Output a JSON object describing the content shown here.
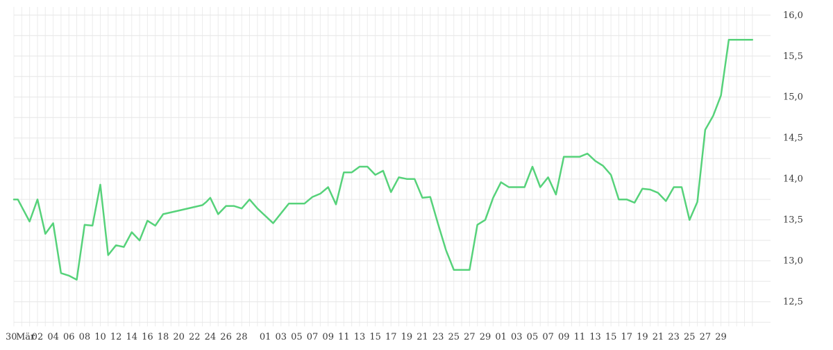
{
  "chart_data": {
    "type": "line",
    "title": "",
    "xlabel": "",
    "ylabel": "",
    "ylim": [
      12.2,
      16.1
    ],
    "y_ticks": [
      "16,0",
      "15,5",
      "15,0",
      "14,5",
      "14,0",
      "13,5",
      "13,0",
      "12,5"
    ],
    "y_tick_values": [
      16.0,
      15.5,
      15.0,
      14.5,
      14.0,
      13.5,
      13.0,
      12.5
    ],
    "y_axis_side": "right",
    "grid": true,
    "line_color": "#56d27a",
    "x_tick_labels": [
      "30",
      "Mär",
      "02",
      "04",
      "06",
      "08",
      "10",
      "12",
      "14",
      "16",
      "18",
      "20",
      "22",
      "24",
      "26",
      "28",
      "01",
      "03",
      "05",
      "07",
      "09",
      "11",
      "13",
      "15",
      "17",
      "19",
      "21",
      "23",
      "25",
      "27",
      "29",
      "01",
      "03",
      "05",
      "07",
      "09",
      "11",
      "13",
      "15",
      "17",
      "19",
      "21",
      "23",
      "25",
      "27",
      "29"
    ],
    "x_tick_days": [
      0,
      1,
      3,
      5,
      7,
      9,
      11,
      13,
      15,
      17,
      19,
      21,
      23,
      25,
      27,
      29,
      32,
      34,
      36,
      38,
      40,
      42,
      44,
      46,
      48,
      50,
      52,
      54,
      56,
      58,
      60,
      62,
      64,
      66,
      68,
      70,
      72,
      74,
      76,
      78,
      80,
      82,
      84,
      86,
      88,
      90
    ],
    "series": [
      {
        "x": [
          0,
          0.5,
          2,
          3,
          4,
          5,
          6,
          7,
          8,
          9,
          10,
          11,
          12,
          13,
          14,
          15,
          16,
          17,
          18,
          19,
          24,
          24.5,
          25,
          26,
          27,
          28,
          29,
          30,
          31,
          33,
          34,
          35,
          36,
          37,
          38,
          39,
          40,
          41,
          42,
          43,
          44,
          45,
          46,
          47,
          48,
          49,
          50,
          51,
          52,
          53,
          54,
          55,
          56,
          57,
          58,
          59,
          60,
          61,
          62,
          63,
          64,
          65,
          66,
          67,
          68,
          69,
          70,
          71,
          72,
          73,
          74,
          75,
          76,
          77,
          78,
          79,
          80,
          81,
          82,
          83,
          84,
          85,
          86,
          87,
          88,
          89,
          90,
          91,
          92,
          93,
          94
        ],
        "y": [
          13.75,
          13.75,
          13.48,
          13.75,
          13.33,
          13.46,
          12.85,
          12.82,
          12.77,
          13.44,
          13.43,
          13.93,
          13.07,
          13.19,
          13.17,
          13.35,
          13.25,
          13.49,
          13.43,
          13.57,
          13.68,
          13.72,
          13.77,
          13.57,
          13.67,
          13.67,
          13.64,
          13.75,
          13.64,
          13.46,
          13.58,
          13.7,
          13.7,
          13.7,
          13.78,
          13.82,
          13.9,
          13.69,
          14.08,
          14.08,
          14.15,
          14.15,
          14.05,
          14.1,
          13.84,
          14.02,
          14.0,
          14.0,
          13.77,
          13.78,
          13.45,
          13.13,
          12.89,
          12.89,
          12.89,
          13.44,
          13.5,
          13.77,
          13.96,
          13.9,
          13.9,
          13.9,
          14.15,
          13.9,
          14.02,
          13.81,
          14.27,
          14.27,
          14.27,
          14.31,
          14.22,
          14.16,
          14.05,
          13.75,
          13.75,
          13.71,
          13.88,
          13.87,
          13.83,
          13.73,
          13.9,
          13.9,
          13.5,
          13.72,
          14.6,
          14.77,
          15.02,
          15.7,
          15.7,
          15.7,
          15.7
        ]
      }
    ]
  }
}
